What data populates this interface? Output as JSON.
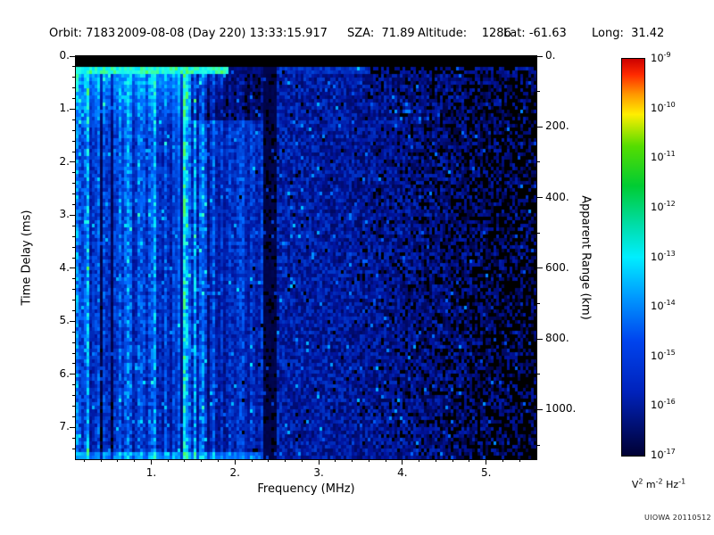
{
  "header": {
    "orbit_label": "Orbit:",
    "orbit_value": "7183",
    "datetime": "2009-08-08 (Day 220) 13:33:15.917",
    "sza_label": "SZA:",
    "sza_value": "71.89",
    "altitude_label": "Altitude:",
    "altitude_value": "1286",
    "lat_label": "Lat:",
    "lat_value": "-61.63",
    "long_label": "Long:",
    "long_value": "31.42"
  },
  "chart_data": {
    "type": "heatmap",
    "title": "",
    "description": "Topside radar-sounder ionogram spectrogram: received spectral density versus sounding frequency (x) and echo time delay (y). Blue noise background with bright cyan-green echoes at low frequency and small delay, dense vertical interference striping below ~1.8 MHz, a black vertical gap near 2.35 MHz, and signal fading to black above ~4 MHz.",
    "xlabel": "Frequency (MHz)",
    "x_range": [
      0.1,
      5.6
    ],
    "x_ticks": [
      1,
      2,
      3,
      4,
      5
    ],
    "x_tick_labels": [
      "1.",
      "2.",
      "3.",
      "4.",
      "5."
    ],
    "x_minor_step": 0.2,
    "ylabel_left": "Time Delay (ms)",
    "y_range": [
      0,
      7.6
    ],
    "y_ticks": [
      0,
      1,
      2,
      3,
      4,
      5,
      6,
      7
    ],
    "y_tick_labels": [
      "0.",
      "1.",
      "2.",
      "3.",
      "4.",
      "5.",
      "6.",
      "7."
    ],
    "y_minor_step": 0.2,
    "ylabel_right": "Apparent Range (km)",
    "y2_range": [
      0,
      1140
    ],
    "y2_ticks": [
      0,
      200,
      400,
      600,
      800,
      1000
    ],
    "y2_tick_labels": [
      "0.",
      "200.",
      "400.",
      "600.",
      "800.",
      "1000."
    ],
    "y2_minor_step": 100,
    "grid": false,
    "legend": "colorbar right",
    "colorbar": {
      "scale": "log",
      "max": "1e-9",
      "min": "1e-17",
      "tick_base": "10",
      "tick_exponents": [
        "-9",
        "-10",
        "-11",
        "-12",
        "-13",
        "-14",
        "-15",
        "-16",
        "-17"
      ],
      "unit_parts": [
        {
          "base": "V",
          "exp": "2"
        },
        {
          "base": " m",
          "exp": "-2"
        },
        {
          "base": " Hz",
          "exp": "-1"
        }
      ],
      "gradient_stops": [
        {
          "pos": 0,
          "color": "#cc0000"
        },
        {
          "pos": 4,
          "color": "#ff2a00"
        },
        {
          "pos": 9,
          "color": "#ff9900"
        },
        {
          "pos": 14,
          "color": "#ffee00"
        },
        {
          "pos": 22,
          "color": "#55dd00"
        },
        {
          "pos": 32,
          "color": "#00cc33"
        },
        {
          "pos": 42,
          "color": "#00ddaa"
        },
        {
          "pos": 50,
          "color": "#00eeff"
        },
        {
          "pos": 60,
          "color": "#0099ff"
        },
        {
          "pos": 71,
          "color": "#0044ee"
        },
        {
          "pos": 84,
          "color": "#0022bb"
        },
        {
          "pos": 100,
          "color": "#000033"
        }
      ]
    },
    "features": [
      "solid black band at zero time delay (0 to ~0.15 ms)",
      "bright cyan-green echo band just below zero delay for frequencies < ~1.9 MHz",
      "dense vertical interference striping below ~1.8 MHz extending down to ~7.6 ms",
      "black vertical gap near 2.35 MHz spanning all delays",
      "diffuse blue noise 2.5-3.6 MHz fading to mostly black above ~4 MHz",
      "background intensity ~1e-15 to 1e-17 V^2 m^-2 Hz^-1, brightest echoes ~1e-13 to 1e-14"
    ]
  },
  "watermark": "UIOWA 20110512"
}
